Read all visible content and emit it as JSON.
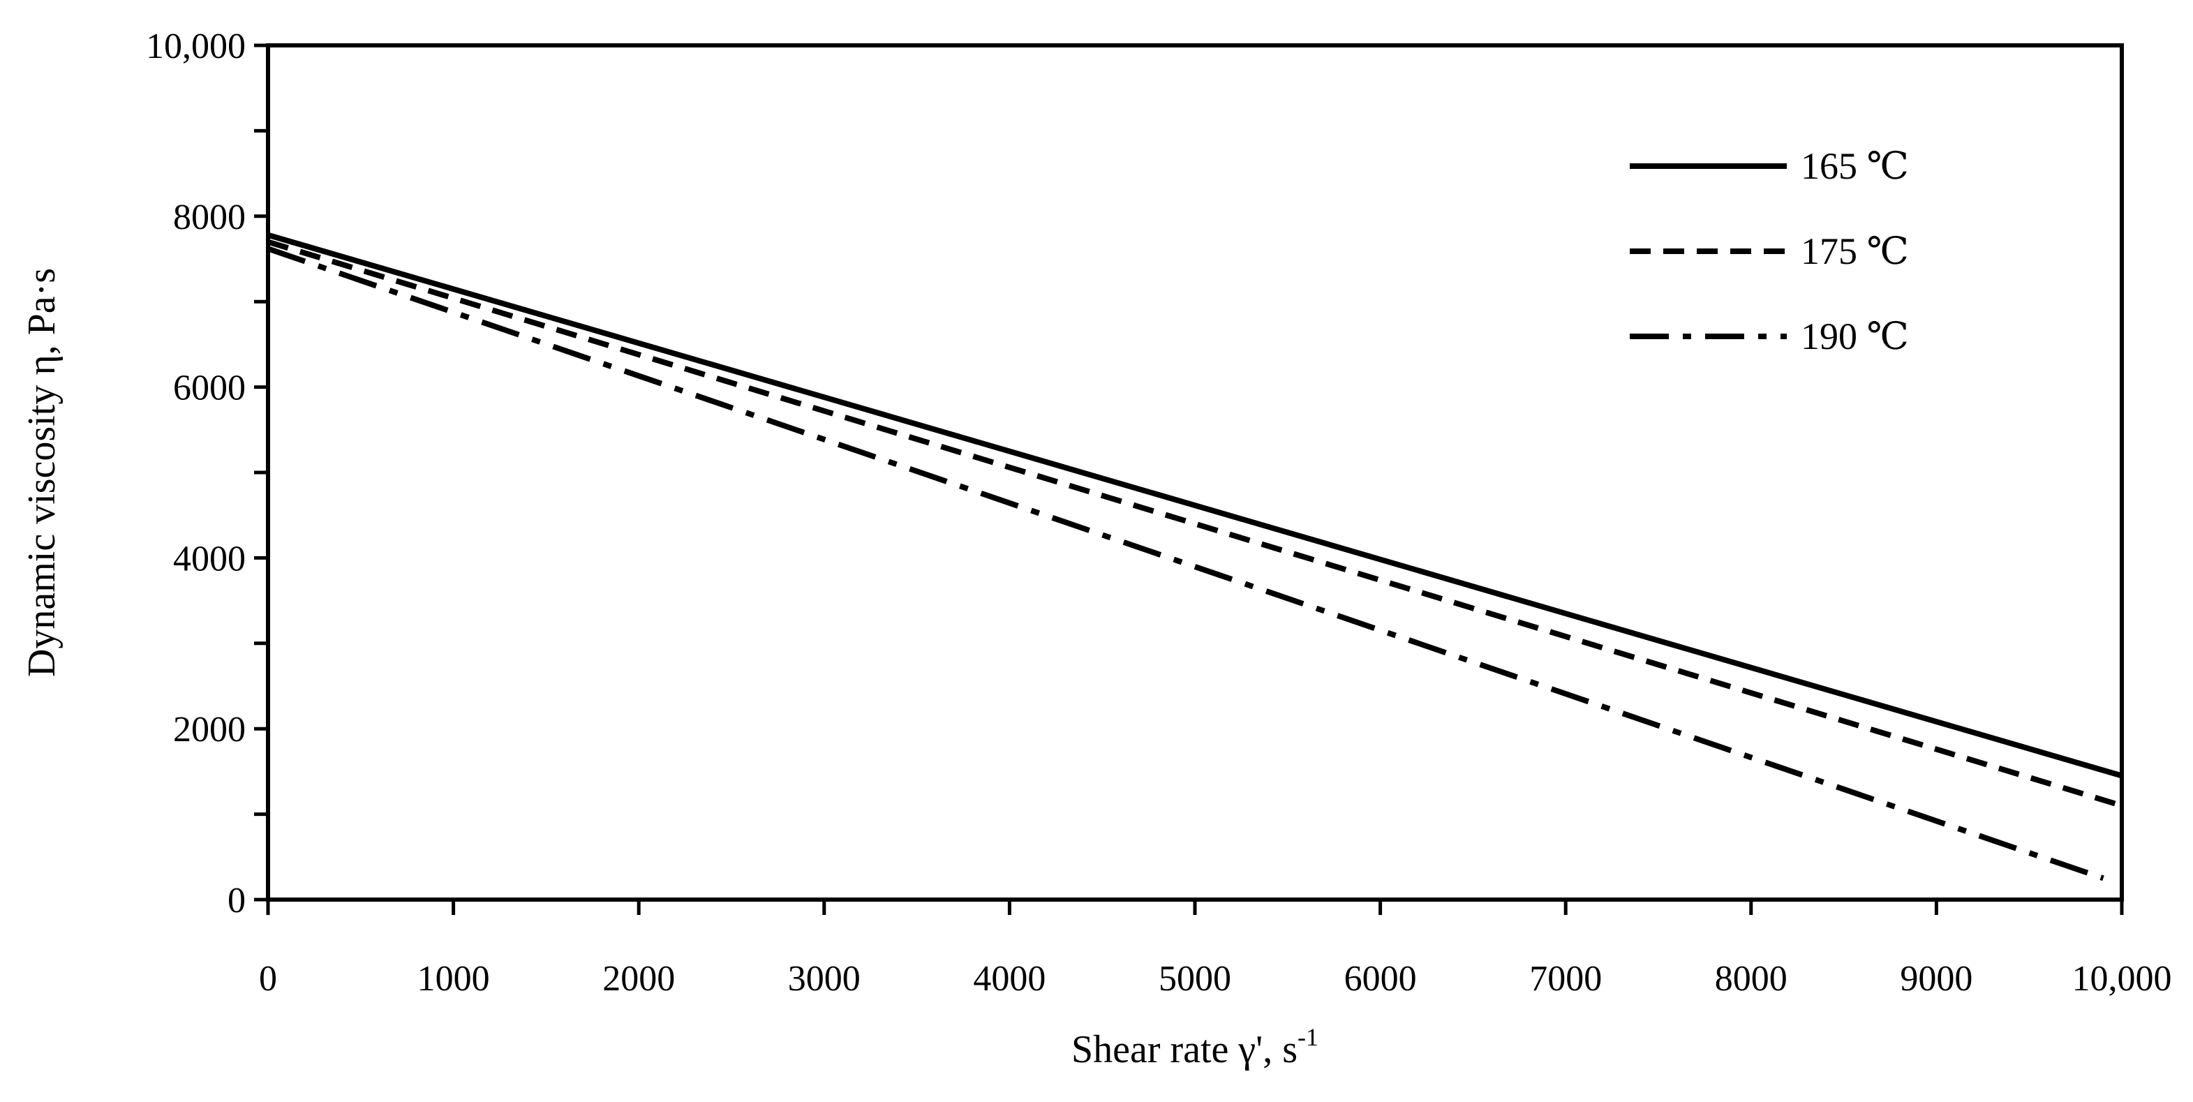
{
  "chart_data": {
    "type": "line",
    "title": "",
    "xlabel": "Shear rate γ', s",
    "xlabel_sup": "-1",
    "ylabel": "Dynamic viscosity η, Pa·s",
    "xlim": [
      0,
      10000
    ],
    "ylim": [
      0,
      10000
    ],
    "x_ticks": [
      0,
      1000,
      2000,
      3000,
      4000,
      5000,
      6000,
      7000,
      8000,
      9000,
      10000
    ],
    "x_tick_labels": [
      "0",
      "1000",
      "2000",
      "3000",
      "4000",
      "5000",
      "6000",
      "7000",
      "8000",
      "9000",
      "10,000"
    ],
    "y_ticks": [
      0,
      2000,
      4000,
      6000,
      8000,
      10000
    ],
    "y_tick_labels": [
      "0",
      "2000",
      "4000",
      "6000",
      "8000",
      "10,000"
    ],
    "y_minor_step": 1000,
    "grid": false,
    "legend_position": "top-right",
    "series": [
      {
        "name": "165 ℃",
        "style": "solid",
        "x": [
          0,
          10000
        ],
        "y": [
          7780,
          1450
        ]
      },
      {
        "name": "175 ℃",
        "style": "dashed",
        "x": [
          0,
          10000
        ],
        "y": [
          7700,
          1100
        ]
      },
      {
        "name": "190 ℃",
        "style": "dashdot",
        "x": [
          0,
          9900
        ],
        "y": [
          7620,
          250
        ]
      }
    ],
    "colors": {
      "line": "#000000",
      "axis": "#000000"
    }
  }
}
